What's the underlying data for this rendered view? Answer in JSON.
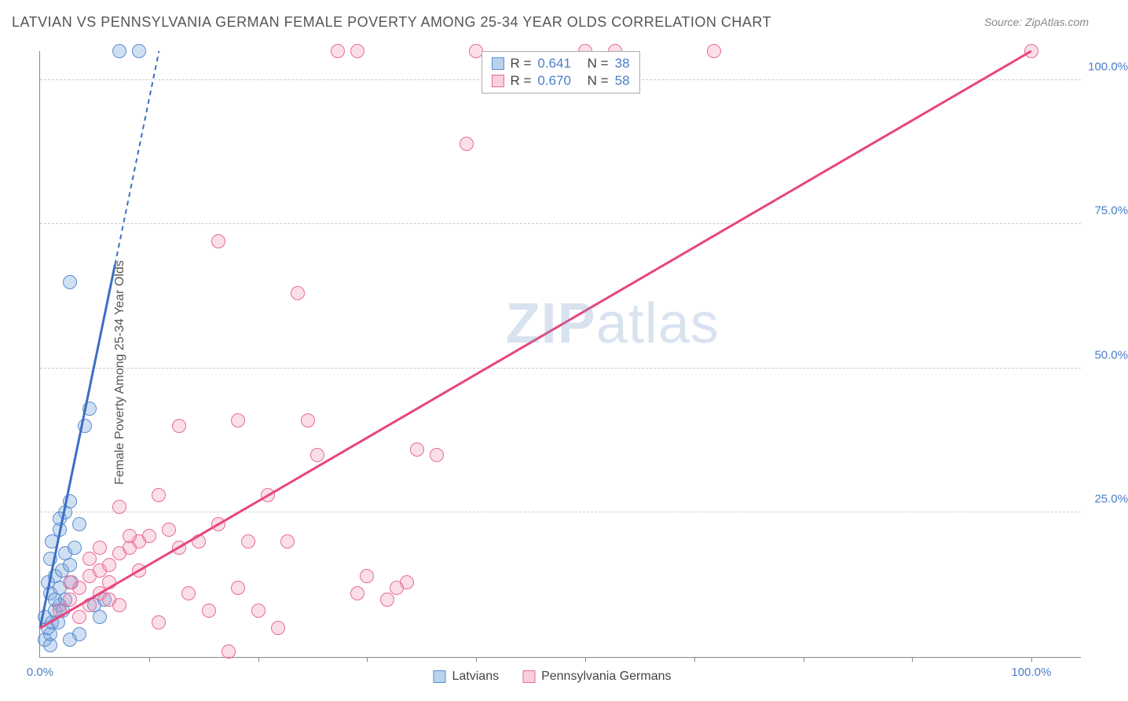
{
  "title": "LATVIAN VS PENNSYLVANIA GERMAN FEMALE POVERTY AMONG 25-34 YEAR OLDS CORRELATION CHART",
  "source": "Source: ZipAtlas.com",
  "ylabel": "Female Poverty Among 25-34 Year Olds",
  "watermark_zip": "ZIP",
  "watermark_atlas": "atlas",
  "chart": {
    "type": "scatter",
    "xlim": [
      0,
      105
    ],
    "ylim": [
      0,
      105
    ],
    "yticks": [
      25,
      50,
      75,
      100
    ],
    "ytick_labels": [
      "25.0%",
      "50.0%",
      "75.0%",
      "100.0%"
    ],
    "xticks_minor": [
      11,
      22,
      33,
      44,
      55,
      66,
      77,
      88,
      100
    ],
    "xtick_labels": [
      {
        "pos": 0,
        "label": "0.0%"
      },
      {
        "pos": 100,
        "label": "100.0%"
      }
    ],
    "background_color": "#ffffff",
    "grid_color": "#cccccc",
    "colors": {
      "blue_fill": "rgba(120,165,220,0.35)",
      "blue_stroke": "#5a8cd0",
      "pink_fill": "rgba(240,150,180,0.3)",
      "pink_stroke": "#e86a9a",
      "blue_line": "#3b6fc4",
      "pink_line": "#e8457f",
      "text_axis": "#4a7ec9"
    },
    "marker_radius": 9,
    "series": [
      {
        "name": "Latvians",
        "color": "blue",
        "R": "0.641",
        "N": "38",
        "trend": {
          "x1": 0,
          "y1": 5,
          "x2": 12,
          "y2": 105,
          "dashed_after_y": 68
        },
        "points": [
          [
            0.5,
            3
          ],
          [
            1,
            4
          ],
          [
            0.8,
            5
          ],
          [
            1.2,
            6
          ],
          [
            0.5,
            7
          ],
          [
            1.5,
            8
          ],
          [
            2,
            9
          ],
          [
            2.5,
            10
          ],
          [
            1,
            11
          ],
          [
            2,
            12
          ],
          [
            0.8,
            13
          ],
          [
            1.5,
            14
          ],
          [
            2.2,
            15
          ],
          [
            3,
            16
          ],
          [
            1,
            17
          ],
          [
            2.5,
            18
          ],
          [
            3.5,
            19
          ],
          [
            1.2,
            20
          ],
          [
            2,
            22
          ],
          [
            4,
            23
          ],
          [
            2.5,
            25
          ],
          [
            3,
            27
          ],
          [
            1.5,
            10
          ],
          [
            2,
            24
          ],
          [
            5.5,
            9
          ],
          [
            6,
            7
          ],
          [
            4,
            4
          ],
          [
            3,
            3
          ],
          [
            6.5,
            10
          ],
          [
            4.5,
            40
          ],
          [
            5,
            43
          ],
          [
            3,
            65
          ],
          [
            8,
            105
          ],
          [
            10,
            105
          ],
          [
            1,
            2
          ],
          [
            1.8,
            6
          ],
          [
            2.3,
            8
          ],
          [
            3.2,
            13
          ]
        ]
      },
      {
        "name": "Pennsylvania Germans",
        "color": "pink",
        "R": "0.670",
        "N": "58",
        "trend": {
          "x1": 0,
          "y1": 5,
          "x2": 100,
          "y2": 105
        },
        "points": [
          [
            2,
            8
          ],
          [
            3,
            10
          ],
          [
            4,
            12
          ],
          [
            5,
            14
          ],
          [
            6,
            15
          ],
          [
            7,
            16
          ],
          [
            8,
            18
          ],
          [
            9,
            19
          ],
          [
            10,
            20
          ],
          [
            11,
            21
          ],
          [
            5,
            17
          ],
          [
            6,
            19
          ],
          [
            7,
            13
          ],
          [
            8,
            9
          ],
          [
            9,
            21
          ],
          [
            10,
            15
          ],
          [
            12,
            6
          ],
          [
            13,
            22
          ],
          [
            14,
            19
          ],
          [
            15,
            11
          ],
          [
            16,
            20
          ],
          [
            17,
            8
          ],
          [
            18,
            23
          ],
          [
            19,
            1
          ],
          [
            20,
            12
          ],
          [
            21,
            20
          ],
          [
            22,
            8
          ],
          [
            23,
            28
          ],
          [
            24,
            5
          ],
          [
            25,
            20
          ],
          [
            14,
            40
          ],
          [
            20,
            41
          ],
          [
            27,
            41
          ],
          [
            26,
            63
          ],
          [
            28,
            35
          ],
          [
            32,
            11
          ],
          [
            33,
            14
          ],
          [
            35,
            10
          ],
          [
            36,
            12
          ],
          [
            37,
            13
          ],
          [
            38,
            36
          ],
          [
            40,
            35
          ],
          [
            18,
            72
          ],
          [
            44,
            105
          ],
          [
            43,
            89
          ],
          [
            32,
            105
          ],
          [
            30,
            105
          ],
          [
            55,
            105
          ],
          [
            58,
            105
          ],
          [
            68,
            105
          ],
          [
            100,
            105
          ],
          [
            8,
            26
          ],
          [
            12,
            28
          ],
          [
            3,
            13
          ],
          [
            4,
            7
          ],
          [
            5,
            9
          ],
          [
            6,
            11
          ],
          [
            7,
            10
          ]
        ]
      }
    ]
  },
  "legend_top": {
    "rows": [
      {
        "swatch": "blue",
        "r_label": "R =",
        "r_val": "0.641",
        "n_label": "N =",
        "n_val": "38"
      },
      {
        "swatch": "pink",
        "r_label": "R =",
        "r_val": "0.670",
        "n_label": "N =",
        "n_val": "58"
      }
    ]
  },
  "legend_bottom": {
    "items": [
      {
        "swatch": "blue",
        "label": "Latvians"
      },
      {
        "swatch": "pink",
        "label": "Pennsylvania Germans"
      }
    ]
  }
}
